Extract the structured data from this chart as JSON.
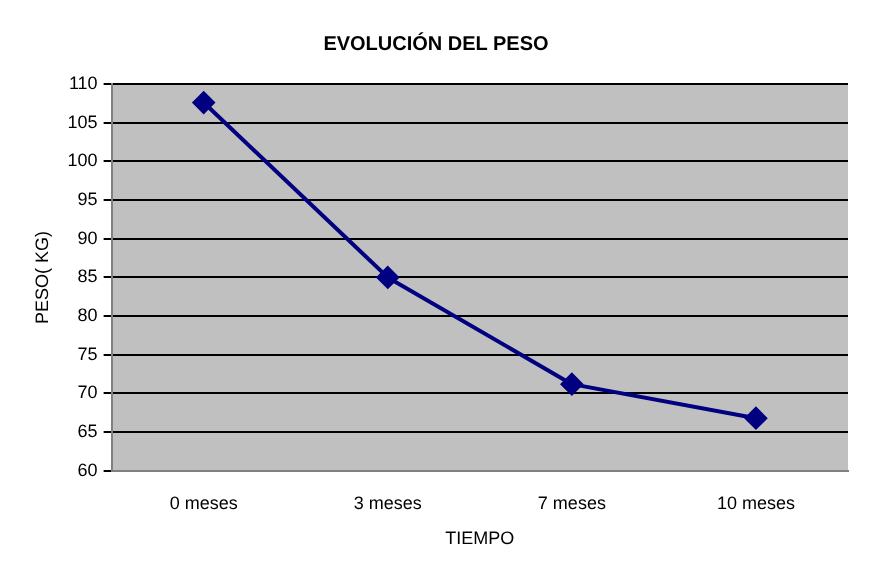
{
  "chart_data": {
    "type": "line",
    "title": "EVOLUCIÓN DEL PESO",
    "xlabel": "TIEMPO",
    "ylabel": "PESO( KG)",
    "categories": [
      "0 meses",
      "3 meses",
      "7 meses",
      "10 meses"
    ],
    "series": [
      {
        "color": "#000080",
        "values": [
          107.6,
          85,
          71.2,
          66.8
        ]
      }
    ],
    "ylim": [
      60,
      110
    ],
    "yticks": [
      60,
      65,
      70,
      75,
      80,
      85,
      90,
      95,
      100,
      105,
      110
    ],
    "grid": "y",
    "legend": false,
    "marker": "diamond",
    "line_style": "solid"
  }
}
